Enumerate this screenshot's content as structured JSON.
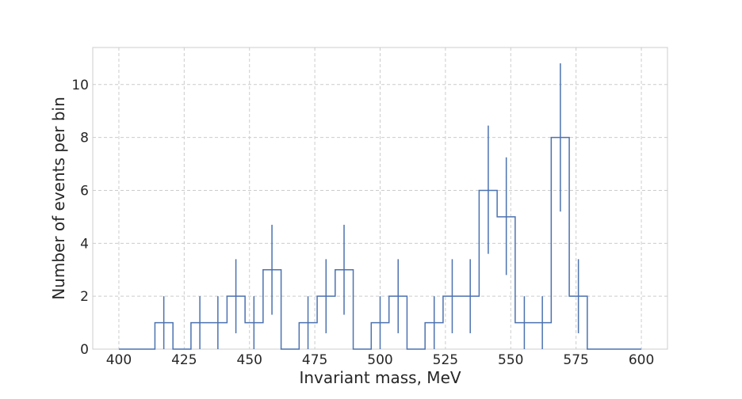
{
  "chart_data": {
    "type": "step",
    "title": "",
    "xlabel": "Invariant mass, MeV",
    "ylabel": "Number of events per bin",
    "xlim": [
      390,
      610
    ],
    "ylim": [
      0,
      11.4
    ],
    "xticks": [
      400,
      425,
      450,
      475,
      500,
      525,
      550,
      575,
      600
    ],
    "yticks": [
      0,
      2,
      4,
      6,
      8,
      10
    ],
    "grid": true,
    "bin_edges": [
      400,
      406.9,
      413.8,
      420.7,
      427.6,
      434.5,
      441.4,
      448.3,
      455.2,
      462.1,
      469.0,
      475.9,
      482.8,
      489.7,
      496.6,
      503.4,
      510.3,
      517.2,
      524.1,
      531.0,
      537.9,
      544.8,
      551.7,
      558.6,
      565.5,
      572.4,
      579.3,
      586.2,
      593.1,
      600
    ],
    "counts": [
      0,
      0,
      1,
      0,
      1,
      1,
      2,
      1,
      3,
      0,
      1,
      2,
      3,
      0,
      1,
      2,
      0,
      1,
      2,
      2,
      6,
      5,
      1,
      1,
      8,
      2,
      0,
      0,
      0
    ],
    "error_bars": [
      {
        "x": 417.2,
        "y": 1,
        "lo": 0,
        "hi": 2
      },
      {
        "x": 431.0,
        "y": 1,
        "lo": 0,
        "hi": 2
      },
      {
        "x": 437.9,
        "y": 1,
        "lo": 0,
        "hi": 2
      },
      {
        "x": 444.8,
        "y": 2,
        "lo": 0.6,
        "hi": 3.4
      },
      {
        "x": 451.7,
        "y": 1,
        "lo": 0,
        "hi": 2
      },
      {
        "x": 458.6,
        "y": 3,
        "lo": 1.3,
        "hi": 4.7
      },
      {
        "x": 472.4,
        "y": 1,
        "lo": 0,
        "hi": 2
      },
      {
        "x": 479.3,
        "y": 2,
        "lo": 0.6,
        "hi": 3.4
      },
      {
        "x": 486.2,
        "y": 3,
        "lo": 1.3,
        "hi": 4.7
      },
      {
        "x": 500.0,
        "y": 1,
        "lo": 0,
        "hi": 2
      },
      {
        "x": 506.9,
        "y": 2,
        "lo": 0.6,
        "hi": 3.4
      },
      {
        "x": 520.7,
        "y": 1,
        "lo": 0,
        "hi": 2
      },
      {
        "x": 527.6,
        "y": 2,
        "lo": 0.6,
        "hi": 3.4
      },
      {
        "x": 534.5,
        "y": 2,
        "lo": 0.6,
        "hi": 3.4
      },
      {
        "x": 541.4,
        "y": 6,
        "lo": 3.6,
        "hi": 8.45
      },
      {
        "x": 548.3,
        "y": 5,
        "lo": 2.8,
        "hi": 7.25
      },
      {
        "x": 555.2,
        "y": 1,
        "lo": 0,
        "hi": 2
      },
      {
        "x": 562.1,
        "y": 1,
        "lo": 0,
        "hi": 2
      },
      {
        "x": 569.0,
        "y": 8,
        "lo": 5.2,
        "hi": 10.8
      },
      {
        "x": 575.9,
        "y": 2,
        "lo": 0.6,
        "hi": 3.4
      }
    ],
    "colors": {
      "line": "#4c72b0",
      "grid": "#cccccc",
      "frame": "#cccccc",
      "text": "#262626"
    }
  }
}
